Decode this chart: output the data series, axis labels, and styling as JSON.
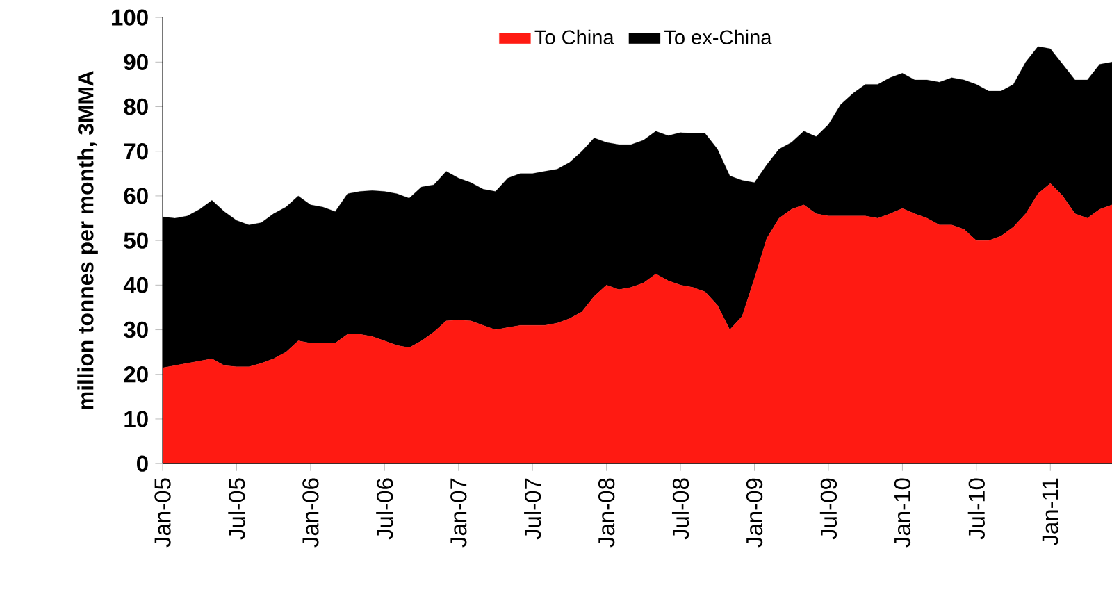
{
  "chart_data": {
    "type": "area",
    "stacked": true,
    "ylabel": "million tonnes per month, 3MMA",
    "categories": [
      "Jan-05",
      null,
      null,
      null,
      null,
      null,
      "Jul-05",
      null,
      null,
      null,
      null,
      null,
      "Jan-06",
      null,
      null,
      null,
      null,
      null,
      "Jul-06",
      null,
      null,
      null,
      null,
      null,
      "Jan-07",
      null,
      null,
      null,
      null,
      null,
      "Jul-07",
      null,
      null,
      null,
      null,
      null,
      "Jan-08",
      null,
      null,
      null,
      null,
      null,
      "Jul-08",
      null,
      null,
      null,
      null,
      null,
      "Jan-09",
      null,
      null,
      null,
      null,
      null,
      "Jul-09",
      null,
      null,
      null,
      null,
      null,
      "Jan-10",
      null,
      null,
      null,
      null,
      null,
      "Jul-10",
      null,
      null,
      null,
      null,
      null,
      "Jan-11",
      null,
      null,
      null,
      null,
      null
    ],
    "series": [
      {
        "name": "To China",
        "color": "#ff1a12",
        "values": [
          21.5,
          22,
          22.5,
          23,
          23.5,
          22,
          21.7,
          21.7,
          22.5,
          23.5,
          25,
          27.5,
          27,
          27,
          27,
          29,
          29,
          28.5,
          27.5,
          26.5,
          26,
          27.5,
          29.5,
          32,
          32.2,
          32,
          31,
          30,
          30.5,
          31,
          31,
          31,
          31.5,
          32.5,
          34,
          37.5,
          40,
          39,
          39.5,
          40.5,
          42.5,
          41,
          40,
          39.5,
          38.5,
          35.5,
          30,
          33,
          41.5,
          50.5,
          55,
          57,
          58,
          56,
          55.5,
          55.5,
          55.5,
          55.5,
          55,
          56,
          57.2,
          56,
          55,
          53.5,
          53.5,
          52.5,
          50,
          50,
          51,
          53,
          56,
          60.5,
          62.8,
          60,
          56,
          55,
          57,
          58
        ]
      },
      {
        "name": "To ex-China",
        "color": "#000000",
        "values": [
          33.8,
          33,
          33,
          34,
          35.5,
          34.5,
          32.8,
          31.8,
          31.5,
          32.5,
          32.5,
          32.5,
          31,
          30.5,
          29.5,
          31.5,
          32,
          32.7,
          33.5,
          34,
          33.5,
          34.5,
          33,
          33.5,
          31.8,
          31,
          30.5,
          31,
          33.5,
          34,
          34,
          34.5,
          34.5,
          35,
          36,
          35.5,
          32,
          32.5,
          32,
          32,
          32,
          32.5,
          34.2,
          34.5,
          35.5,
          35,
          34.5,
          30.5,
          21.5,
          16.5,
          15.5,
          15,
          16.5,
          17.3,
          20.5,
          25,
          27.5,
          29.5,
          30,
          30.5,
          30.3,
          30,
          31,
          32,
          33,
          33.5,
          35,
          33.5,
          32.5,
          32,
          34,
          33,
          30.2,
          29.5,
          30,
          31,
          32.5,
          32
        ]
      }
    ],
    "ylim": [
      0,
      100
    ],
    "yticks": [
      0,
      10,
      20,
      30,
      40,
      50,
      60,
      70,
      80,
      90,
      100
    ],
    "legend": "top"
  }
}
